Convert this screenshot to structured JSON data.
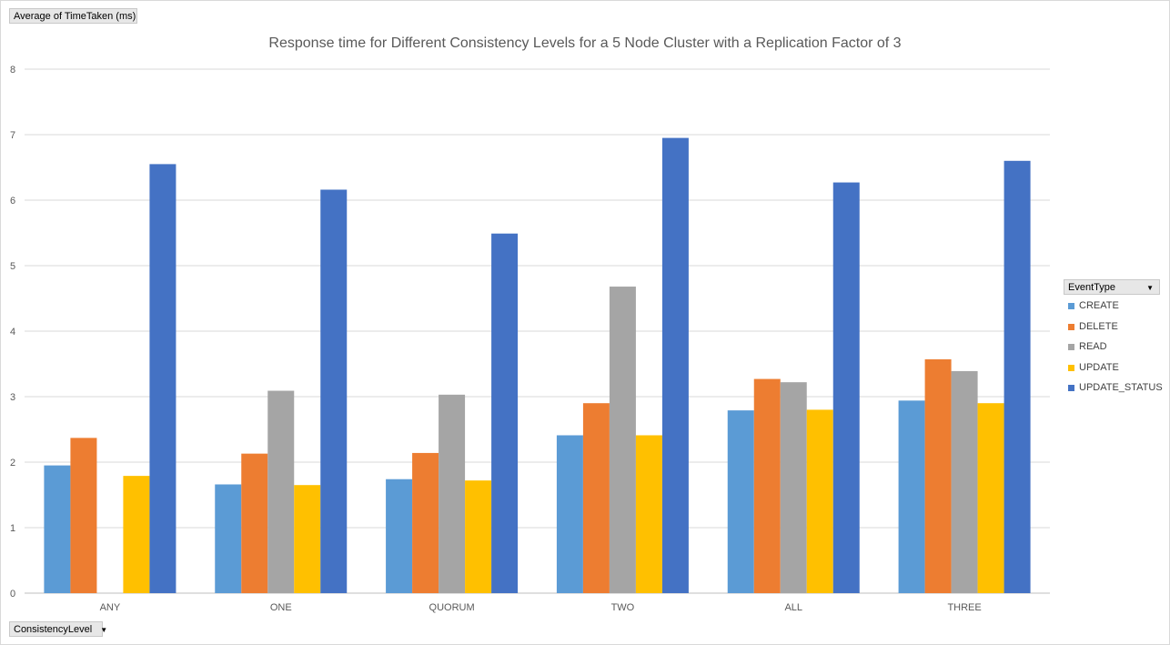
{
  "field_buttons": {
    "values": "Average of TimeTaken (ms)",
    "axis": "ConsistencyLevel",
    "legend": "EventType"
  },
  "chart_data": {
    "type": "bar",
    "title": "Response  time for Different Consistency Levels for a 5 Node Cluster with a Replication Factor of 3",
    "xlabel": "",
    "ylabel": "",
    "ylim": [
      0,
      8
    ],
    "yticks": [
      0,
      1,
      2,
      3,
      4,
      5,
      6,
      7,
      8
    ],
    "grid": true,
    "legend_position": "right",
    "categories": [
      "ANY",
      "ONE",
      "QUORUM",
      "TWO",
      "ALL",
      "THREE"
    ],
    "series": [
      {
        "name": "CREATE",
        "color": "#5b9bd5",
        "values": [
          1.95,
          1.66,
          1.74,
          2.41,
          2.79,
          2.94
        ]
      },
      {
        "name": "DELETE",
        "color": "#ed7d31",
        "values": [
          2.37,
          2.13,
          2.14,
          2.9,
          3.27,
          3.57
        ]
      },
      {
        "name": "READ",
        "color": "#a5a5a5",
        "values": [
          null,
          3.09,
          3.03,
          4.68,
          3.22,
          3.39
        ]
      },
      {
        "name": "UPDATE",
        "color": "#ffc000",
        "values": [
          1.79,
          1.65,
          1.72,
          2.41,
          2.8,
          2.9
        ]
      },
      {
        "name": "UPDATE_STATUS",
        "color": "#4472c4",
        "values": [
          6.55,
          6.16,
          5.49,
          6.95,
          6.27,
          6.6
        ]
      }
    ]
  }
}
